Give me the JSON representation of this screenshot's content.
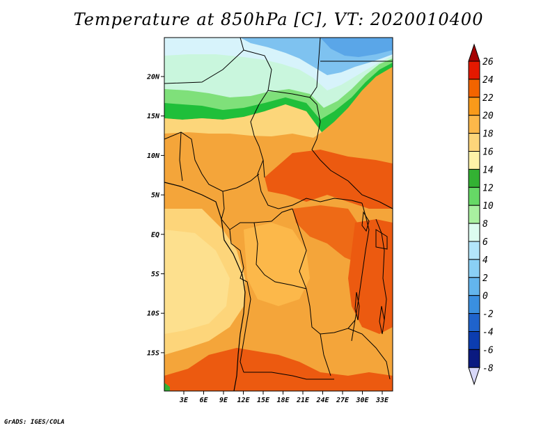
{
  "title": "Temperature at 850hPa [C], VT: 2020010400",
  "credit": "GrADS: IGES/COLA",
  "lat_labels": [
    "20N",
    "15N",
    "10N",
    "5N",
    "EQ",
    "5S",
    "10S",
    "15S"
  ],
  "lon_labels": [
    "3E",
    "6E",
    "9E",
    "12E",
    "15E",
    "18E",
    "21E",
    "24E",
    "27E",
    "30E",
    "33E"
  ],
  "colorbar": {
    "levels": [
      "26",
      "24",
      "22",
      "20",
      "18",
      "16",
      "14",
      "12",
      "10",
      "8",
      "6",
      "4",
      "2",
      "0",
      "-2",
      "-4",
      "-6",
      "-8"
    ],
    "colors": [
      "#a50000",
      "#e51900",
      "#f26400",
      "#f99a1a",
      "#fcb84a",
      "#fdd57a",
      "#fef3a8",
      "#33b233",
      "#66d966",
      "#a9f0a0",
      "#dcfcf0",
      "#b3e6fb",
      "#8ad0f5",
      "#63b5ed",
      "#3a8fe0",
      "#1f63cc",
      "#0c3db0",
      "#0a1a80",
      "#d8d8f8"
    ]
  }
}
